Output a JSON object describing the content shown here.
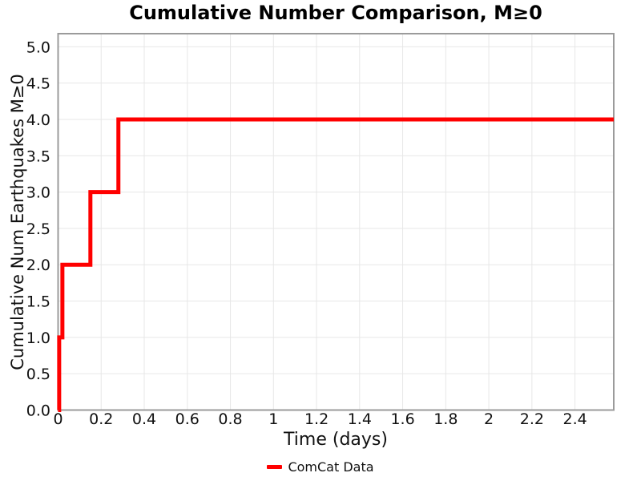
{
  "chart_data": {
    "type": "line",
    "subtype": "step-post-cumulative",
    "title": "Cumulative Number Comparison, M≥0",
    "xlabel": "Time (days)",
    "ylabel": "Cumulative Num Earthquakes M≥0",
    "series": [
      {
        "name": "ComCat Data",
        "color": "#ff0000",
        "line_width": 5,
        "x_start": 0,
        "event_times_days": [
          0.005,
          0.02,
          0.15,
          0.28
        ],
        "cumulative_counts": [
          1,
          2,
          3,
          4
        ],
        "x_end": 2.58
      }
    ],
    "xlim": [
      0,
      2.58
    ],
    "ylim": [
      0,
      5.18
    ],
    "xticks": {
      "values": [
        0,
        0.2,
        0.4,
        0.6,
        0.8,
        1.0,
        1.2,
        1.4,
        1.6,
        1.8,
        2.0,
        2.2,
        2.4
      ],
      "labels": [
        "0",
        "0.2",
        "0.4",
        "0.6",
        "0.8",
        "1",
        "1.2",
        "1.4",
        "1.6",
        "1.8",
        "2",
        "2.2",
        "2.4"
      ]
    },
    "yticks": {
      "values": [
        0.0,
        0.5,
        1.0,
        1.5,
        2.0,
        2.5,
        3.0,
        3.5,
        4.0,
        4.5,
        5.0
      ],
      "labels": [
        "0.0",
        "0.5",
        "1.0",
        "1.5",
        "2.0",
        "2.5",
        "3.0",
        "3.5",
        "4.0",
        "4.5",
        "5.0"
      ]
    },
    "grid": true,
    "grid_color": "#e7e7e7",
    "spine_color": "#9b9b9b",
    "tick_label_color": "#111111",
    "background": "#ffffff",
    "legend_position": "below-chart-center"
  }
}
